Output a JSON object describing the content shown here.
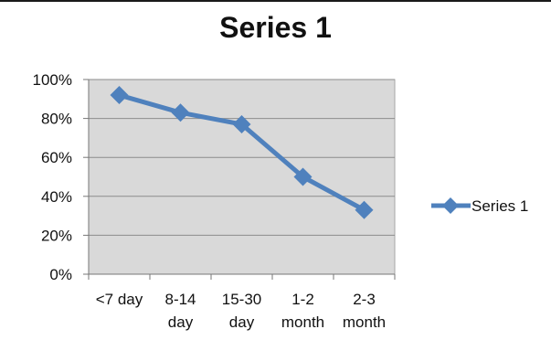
{
  "chart_data": {
    "type": "line",
    "title": "Series 1",
    "categories": [
      "<7 day",
      "8-14 day",
      "15-30 day",
      "1-2 month",
      "2-3 month"
    ],
    "category_lines": [
      [
        "<7 day"
      ],
      [
        "8-14",
        "day"
      ],
      [
        "15-30",
        "day"
      ],
      [
        "1-2",
        "month"
      ],
      [
        "2-3",
        "month"
      ]
    ],
    "series": [
      {
        "name": "Series 1",
        "values": [
          92,
          83,
          77,
          50,
          33
        ],
        "color": "#4f81bd"
      }
    ],
    "y_ticks": [
      "0%",
      "20%",
      "40%",
      "60%",
      "80%",
      "100%"
    ],
    "ylim": [
      0,
      100
    ],
    "grid": true,
    "plot_background": "#d9d9d9",
    "legend_position": "right",
    "marker": "diamond"
  }
}
